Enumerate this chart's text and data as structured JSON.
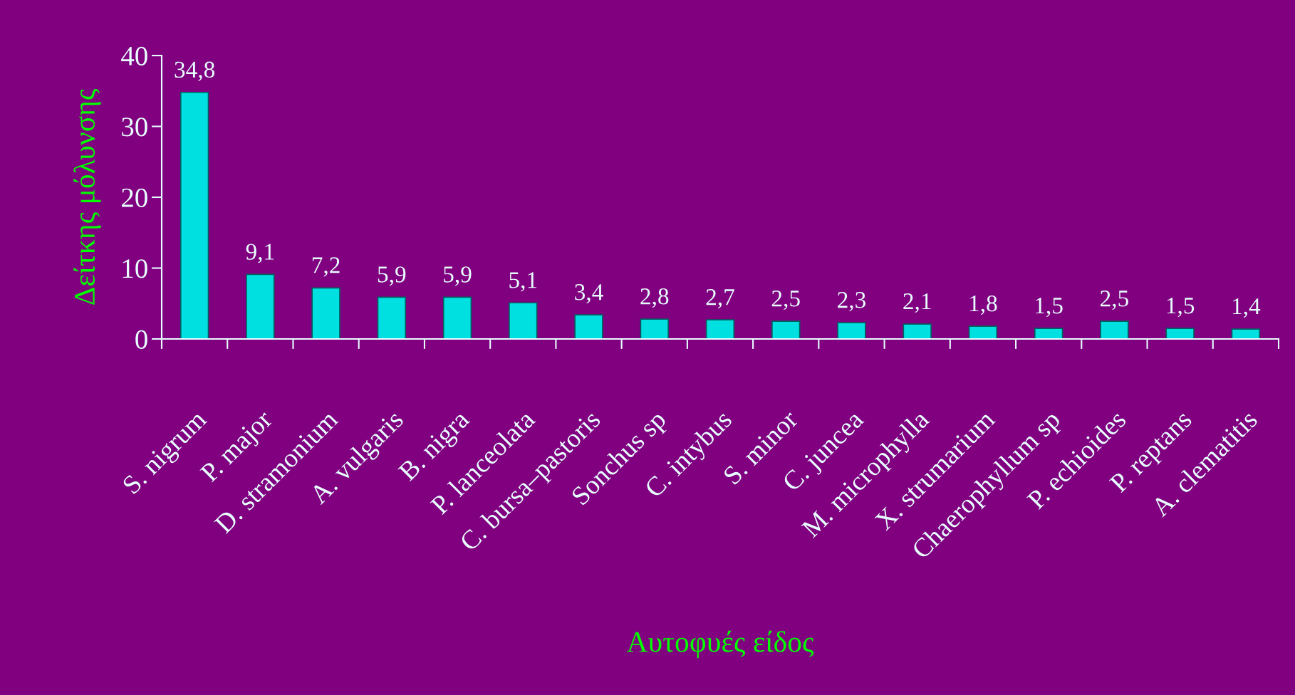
{
  "chart_data": {
    "type": "bar",
    "xlabel": "Αυτοφυές είδος",
    "ylabel": "Δείτκης μόλυνσης",
    "categories": [
      "S. nigrum",
      "P. major",
      "D. stramonium",
      "A. vulgaris",
      "B. nigra",
      "P. lanceolata",
      "C. bursa–pastoris",
      "Sonchus sp",
      "C. intybus",
      "S. minor",
      "C. juncea",
      "M. microphylla",
      "X. strumarium",
      "Chaerophyllum sp",
      "P. echioides",
      "P. reptans",
      "A. clematitis"
    ],
    "values": [
      34.8,
      9.1,
      7.2,
      5.9,
      5.9,
      5.1,
      3.4,
      2.8,
      2.7,
      2.5,
      2.3,
      2.1,
      1.8,
      1.5,
      2.5,
      1.5,
      1.4
    ],
    "value_labels": [
      "34,8",
      "9,1",
      "7,2",
      "5,9",
      "5,9",
      "5,1",
      "3,4",
      "2,8",
      "2,7",
      "2,5",
      "2,3",
      "2,1",
      "1,8",
      "1,5",
      "2,5",
      "1,5",
      "1,4"
    ],
    "color": "#00e0e0",
    "ylim": [
      0,
      40
    ],
    "yticks": [
      0,
      10,
      20,
      30,
      40
    ],
    "grid": false,
    "legend": false
  }
}
